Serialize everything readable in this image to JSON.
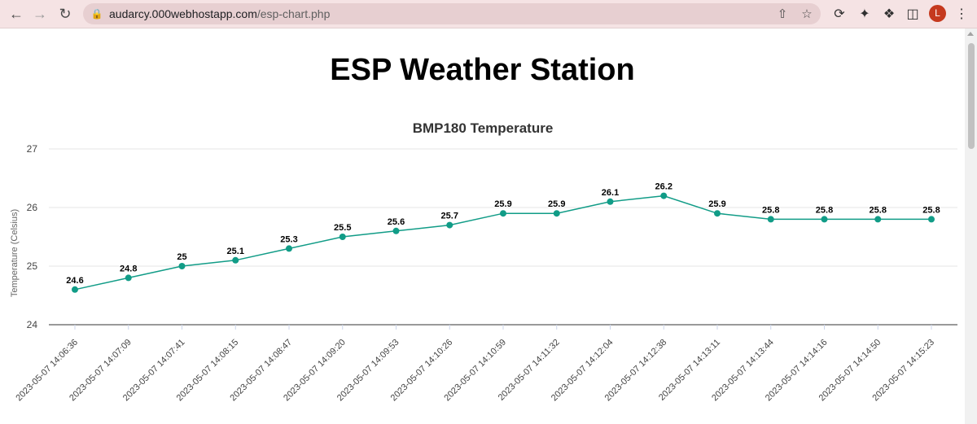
{
  "browser": {
    "url_host": "audarcy.000webhostapp.com",
    "url_path": "/esp-chart.php",
    "avatar_letter": "L"
  },
  "page": {
    "title": "ESP Weather Station"
  },
  "chart_data": {
    "type": "line",
    "title": "BMP180 Temperature",
    "xlabel": "",
    "ylabel": "Temperature (Celsius)",
    "ylim": [
      24,
      27
    ],
    "yticks": [
      24,
      25,
      26,
      27
    ],
    "grid": true,
    "legend": "none",
    "color": "#119c87",
    "categories": [
      "2023-05-07 14:06:36",
      "2023-05-07 14:07:09",
      "2023-05-07 14:07:41",
      "2023-05-07 14:08:15",
      "2023-05-07 14:08:47",
      "2023-05-07 14:09:20",
      "2023-05-07 14:09:53",
      "2023-05-07 14:10:26",
      "2023-05-07 14:10:59",
      "2023-05-07 14:11:32",
      "2023-05-07 14:12:04",
      "2023-05-07 14:12:38",
      "2023-05-07 14:13:11",
      "2023-05-07 14:13:44",
      "2023-05-07 14:14:16",
      "2023-05-07 14:14:50",
      "2023-05-07 14:15:23"
    ],
    "values": [
      24.6,
      24.8,
      25,
      25.1,
      25.3,
      25.5,
      25.6,
      25.7,
      25.9,
      25.9,
      26.1,
      26.2,
      25.9,
      25.8,
      25.8,
      25.8,
      25.8
    ]
  }
}
